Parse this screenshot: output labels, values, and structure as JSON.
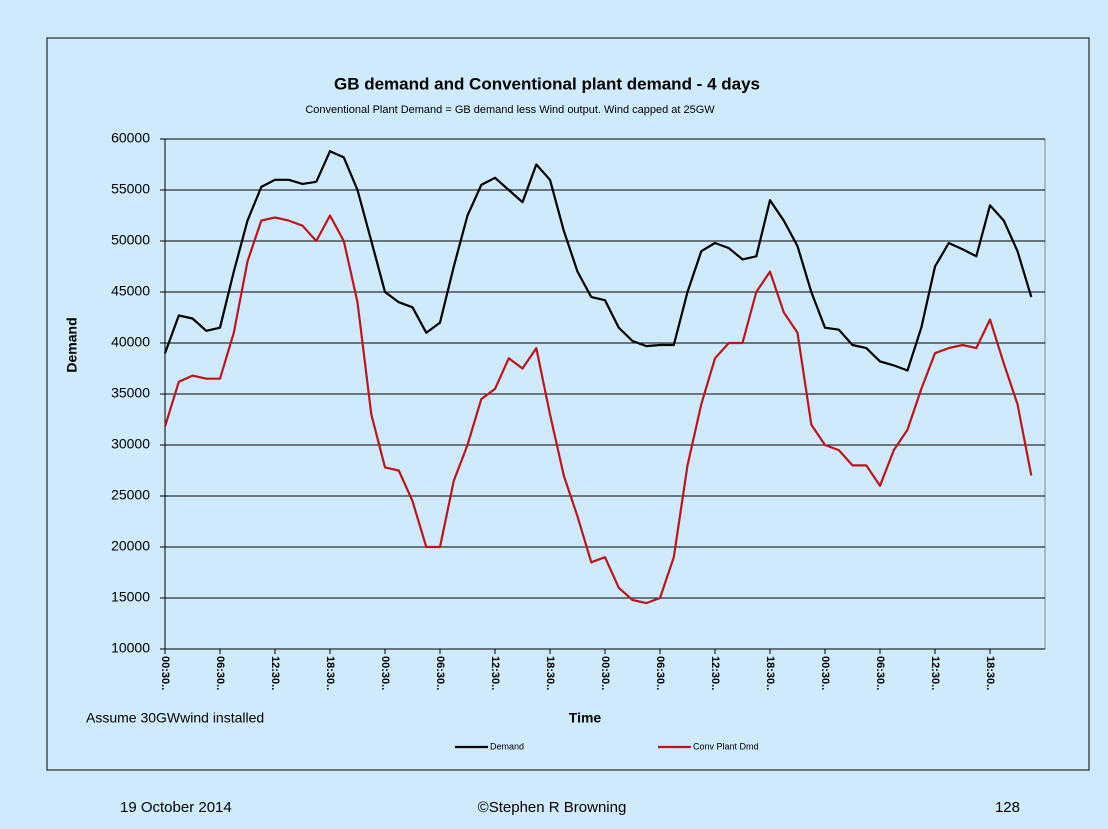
{
  "chart_data": {
    "type": "line",
    "title": "GB demand and Conventional plant demand - 4 days",
    "subtitle": "Conventional Plant Demand = GB demand less Wind output. Wind capped at 25GW",
    "annotation": "Assume 30GWwind installed",
    "x_label": "Time",
    "y_label": "Demand",
    "categories": [
      "00:30..",
      null,
      null,
      null,
      "06:30..",
      null,
      null,
      null,
      "12:30..",
      null,
      null,
      null,
      "18:30..",
      null,
      null,
      null,
      "00:30..",
      null,
      null,
      null,
      "06:30..",
      null,
      null,
      null,
      "12:30..",
      null,
      null,
      null,
      "18:30..",
      null,
      null,
      null,
      "00:30..",
      null,
      null,
      null,
      "06:30..",
      null,
      null,
      null,
      "12:30..",
      null,
      null,
      null,
      "18:30..",
      null,
      null,
      null,
      "00:30..",
      null,
      null,
      null,
      "06:30..",
      null,
      null,
      null,
      "12:30..",
      null,
      null,
      null,
      "18:30..",
      null,
      null,
      null
    ],
    "series": [
      {
        "name": "Demand",
        "color": "#000000",
        "values": [
          39000,
          42700,
          42400,
          41200,
          41500,
          47000,
          52000,
          55300,
          56000,
          56000,
          55600,
          55800,
          58800,
          58200,
          55000,
          50000,
          45000,
          44000,
          43500,
          41000,
          42000,
          47500,
          52500,
          55500,
          56200,
          55000,
          53800,
          57500,
          56000,
          51000,
          47000,
          44500,
          44200,
          41500,
          40200,
          39700,
          39800,
          39800,
          45000,
          49000,
          49800,
          49300,
          48200,
          48500,
          54000,
          52000,
          49500,
          45000,
          41500,
          41300,
          39800,
          39500,
          38200,
          37800,
          37300,
          41500,
          47500,
          49800,
          49200,
          48500,
          53500,
          52000,
          49000,
          44500
        ]
      },
      {
        "name": "Conv Plant Dmd",
        "color": "#c0141c",
        "values": [
          31800,
          36200,
          36800,
          36500,
          36500,
          41000,
          48000,
          52000,
          52300,
          52000,
          51500,
          50000,
          52500,
          50000,
          44000,
          33000,
          27800,
          27500,
          24500,
          20000,
          20000,
          26500,
          30000,
          34500,
          35500,
          38500,
          37500,
          39500,
          33000,
          27000,
          23000,
          18500,
          19000,
          16000,
          14800,
          14500,
          15000,
          19000,
          28000,
          34000,
          38500,
          40000,
          40000,
          45000,
          47000,
          43000,
          41000,
          32000,
          30000,
          29500,
          28000,
          28000,
          26000,
          29500,
          31500,
          35500,
          39000,
          39500,
          39800,
          39500,
          42300,
          38000,
          34000,
          27000
        ]
      }
    ],
    "ylim": [
      10000,
      60000
    ],
    "yticks": [
      10000,
      15000,
      20000,
      25000,
      30000,
      35000,
      40000,
      45000,
      50000,
      55000,
      60000
    ],
    "grid": true,
    "legend": "bottom"
  },
  "footer": {
    "date": "19 October 2014",
    "author": "©Stephen R Browning",
    "page": "128"
  }
}
